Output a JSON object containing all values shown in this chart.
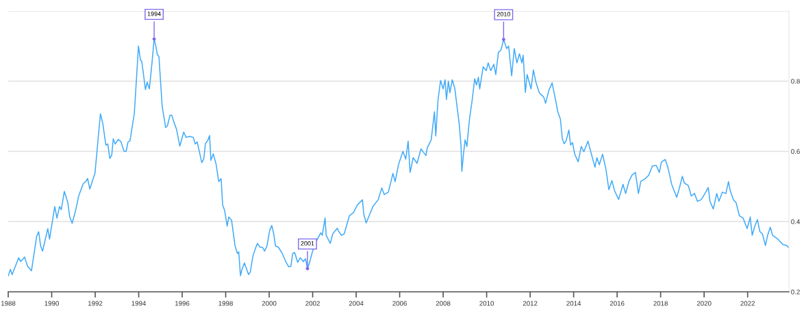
{
  "chart_data": {
    "type": "line",
    "x": [
      1988.0,
      1988.1,
      1988.18,
      1988.48,
      1988.57,
      1988.75,
      1988.89,
      1989.07,
      1989.31,
      1989.4,
      1989.49,
      1989.58,
      1989.82,
      1989.9,
      1990.14,
      1990.24,
      1990.36,
      1990.44,
      1990.58,
      1990.74,
      1990.83,
      1990.94,
      1991.1,
      1991.24,
      1991.45,
      1991.57,
      1991.65,
      1991.75,
      1991.99,
      1992.11,
      1992.24,
      1992.35,
      1992.49,
      1992.58,
      1992.67,
      1992.76,
      1992.83,
      1992.92,
      1993.06,
      1993.18,
      1993.33,
      1993.42,
      1993.51,
      1993.6,
      1993.8,
      1993.99,
      1994.08,
      1994.14,
      1994.31,
      1994.39,
      1994.49,
      1994.61,
      1994.71,
      1994.79,
      1994.85,
      1994.93,
      1995.08,
      1995.24,
      1995.32,
      1995.44,
      1995.52,
      1995.62,
      1995.74,
      1995.89,
      1996.07,
      1996.18,
      1996.33,
      1996.51,
      1996.6,
      1996.69,
      1996.9,
      1996.99,
      1997.07,
      1997.17,
      1997.26,
      1997.32,
      1997.43,
      1997.56,
      1997.68,
      1997.79,
      1997.86,
      1997.95,
      1998.07,
      1998.14,
      1998.27,
      1998.43,
      1998.54,
      1998.6,
      1998.68,
      1998.75,
      1998.86,
      1998.95,
      1999.05,
      1999.13,
      1999.25,
      1999.37,
      1999.46,
      1999.58,
      1999.69,
      1999.79,
      1999.9,
      2000.02,
      2000.12,
      2000.21,
      2000.29,
      2000.42,
      2000.58,
      2000.76,
      2000.9,
      2001.0,
      2001.08,
      2001.17,
      2001.31,
      2001.43,
      2001.57,
      2001.67,
      2001.76,
      2001.85,
      2001.98,
      2002.15,
      2002.37,
      2002.44,
      2002.57,
      2002.62,
      2002.81,
      2002.92,
      2003.13,
      2003.18,
      2003.32,
      2003.45,
      2003.69,
      2003.87,
      2004.05,
      2004.29,
      2004.35,
      2004.46,
      2004.6,
      2004.77,
      2005.01,
      2005.18,
      2005.29,
      2005.48,
      2005.69,
      2005.79,
      2005.95,
      2006.15,
      2006.28,
      2006.39,
      2006.48,
      2006.62,
      2006.8,
      2006.98,
      2007.21,
      2007.27,
      2007.45,
      2007.6,
      2007.66,
      2007.76,
      2007.88,
      2008.0,
      2008.09,
      2008.15,
      2008.24,
      2008.31,
      2008.42,
      2008.54,
      2008.59,
      2008.74,
      2008.82,
      2008.86,
      2008.94,
      2009.01,
      2009.09,
      2009.21,
      2009.33,
      2009.45,
      2009.53,
      2009.62,
      2009.68,
      2009.84,
      2009.98,
      2010.07,
      2010.19,
      2010.33,
      2010.42,
      2010.54,
      2010.66,
      2010.78,
      2010.92,
      2011.01,
      2011.15,
      2011.27,
      2011.39,
      2011.51,
      2011.62,
      2011.68,
      2011.78,
      2011.86,
      2012.04,
      2012.15,
      2012.27,
      2012.42,
      2012.62,
      2012.71,
      2012.86,
      2013.01,
      2013.15,
      2013.27,
      2013.39,
      2013.48,
      2013.56,
      2013.65,
      2013.78,
      2013.86,
      2013.95,
      2014.05,
      2014.21,
      2014.35,
      2014.47,
      2014.66,
      2014.8,
      2014.98,
      2015.07,
      2015.18,
      2015.33,
      2015.48,
      2015.62,
      2015.76,
      2015.88,
      2016.07,
      2016.27,
      2016.39,
      2016.54,
      2016.68,
      2016.84,
      2016.98,
      2017.09,
      2017.27,
      2017.45,
      2017.62,
      2017.8,
      2017.94,
      2018.04,
      2018.21,
      2018.33,
      2018.51,
      2018.62,
      2018.74,
      2018.86,
      2019.0,
      2019.09,
      2019.27,
      2019.41,
      2019.56,
      2019.69,
      2019.86,
      2020.04,
      2020.19,
      2020.27,
      2020.42,
      2020.58,
      2020.68,
      2020.84,
      2021.0,
      2021.12,
      2021.2,
      2021.35,
      2021.47,
      2021.62,
      2021.79,
      2021.98,
      2022.12,
      2022.21,
      2022.33,
      2022.45,
      2022.56,
      2022.68,
      2022.82,
      2022.92,
      2023.04,
      2023.15,
      2023.39,
      2023.62,
      2023.8,
      2023.88
    ],
    "series": [
      {
        "color": "#40aaf8",
        "values": [
          0.245,
          0.264,
          0.249,
          0.297,
          0.286,
          0.299,
          0.273,
          0.26,
          0.359,
          0.371,
          0.331,
          0.316,
          0.38,
          0.35,
          0.443,
          0.41,
          0.443,
          0.434,
          0.486,
          0.454,
          0.413,
          0.395,
          0.432,
          0.473,
          0.508,
          0.514,
          0.523,
          0.493,
          0.538,
          0.619,
          0.707,
          0.679,
          0.618,
          0.621,
          0.58,
          0.589,
          0.636,
          0.621,
          0.634,
          0.628,
          0.6,
          0.6,
          0.627,
          0.63,
          0.709,
          0.9,
          0.86,
          0.857,
          0.776,
          0.797,
          0.778,
          0.851,
          0.92,
          0.9,
          0.877,
          0.87,
          0.728,
          0.668,
          0.673,
          0.703,
          0.703,
          0.683,
          0.663,
          0.615,
          0.655,
          0.64,
          0.643,
          0.64,
          0.621,
          0.627,
          0.568,
          0.578,
          0.623,
          0.63,
          0.645,
          0.574,
          0.593,
          0.563,
          0.514,
          0.522,
          0.447,
          0.432,
          0.387,
          0.413,
          0.404,
          0.331,
          0.309,
          0.314,
          0.246,
          0.264,
          0.282,
          0.267,
          0.249,
          0.256,
          0.301,
          0.324,
          0.338,
          0.327,
          0.327,
          0.316,
          0.331,
          0.374,
          0.389,
          0.365,
          0.331,
          0.327,
          0.312,
          0.286,
          0.271,
          0.273,
          0.309,
          0.312,
          0.284,
          0.297,
          0.286,
          0.294,
          0.266,
          0.282,
          0.312,
          0.342,
          0.368,
          0.361,
          0.41,
          0.361,
          0.338,
          0.365,
          0.381,
          0.374,
          0.361,
          0.365,
          0.417,
          0.425,
          0.447,
          0.462,
          0.421,
          0.396,
          0.417,
          0.443,
          0.462,
          0.496,
          0.477,
          0.484,
          0.537,
          0.514,
          0.563,
          0.6,
          0.578,
          0.629,
          0.54,
          0.582,
          0.566,
          0.607,
          0.588,
          0.61,
          0.633,
          0.713,
          0.644,
          0.744,
          0.802,
          0.778,
          0.804,
          0.748,
          0.8,
          0.767,
          0.804,
          0.778,
          0.752,
          0.677,
          0.618,
          0.543,
          0.596,
          0.633,
          0.614,
          0.692,
          0.744,
          0.807,
          0.789,
          0.811,
          0.778,
          0.841,
          0.83,
          0.852,
          0.83,
          0.848,
          0.819,
          0.882,
          0.889,
          0.919,
          0.893,
          0.9,
          0.815,
          0.893,
          0.852,
          0.878,
          0.852,
          0.874,
          0.768,
          0.819,
          0.778,
          0.832,
          0.796,
          0.767,
          0.755,
          0.737,
          0.774,
          0.795,
          0.752,
          0.713,
          0.692,
          0.636,
          0.622,
          0.629,
          0.661,
          0.618,
          0.625,
          0.592,
          0.57,
          0.614,
          0.599,
          0.629,
          0.596,
          0.555,
          0.582,
          0.562,
          0.592,
          0.551,
          0.491,
          0.517,
          0.488,
          0.463,
          0.506,
          0.48,
          0.514,
          0.532,
          0.54,
          0.48,
          0.515,
          0.521,
          0.532,
          0.558,
          0.56,
          0.54,
          0.57,
          0.577,
          0.555,
          0.506,
          0.488,
          0.469,
          0.495,
          0.529,
          0.51,
          0.503,
          0.473,
          0.48,
          0.458,
          0.462,
          0.48,
          0.497,
          0.458,
          0.436,
          0.48,
          0.458,
          0.484,
          0.48,
          0.514,
          0.488,
          0.462,
          0.454,
          0.417,
          0.41,
          0.38,
          0.413,
          0.361,
          0.387,
          0.406,
          0.372,
          0.365,
          0.332,
          0.361,
          0.384,
          0.361,
          0.35,
          0.335,
          0.332,
          0.326
        ]
      }
    ],
    "xlim": [
      1988,
      2023.9
    ],
    "xticks": [
      1988,
      1990,
      1992,
      1994,
      1996,
      1998,
      2000,
      2002,
      2004,
      2006,
      2008,
      2010,
      2012,
      2014,
      2016,
      2018,
      2020,
      2022
    ],
    "ylim": [
      0.2,
      1.0
    ],
    "yticks": [
      0.2,
      0.4,
      0.6,
      0.8,
      {
        "value": 1.0,
        "label": null
      }
    ],
    "grid": "y",
    "marker": "none",
    "line_style": "solid",
    "annotations": [
      {
        "text": "1994",
        "x": 1994.71,
        "y": 0.92
      },
      {
        "text": "2001",
        "x": 2001.76,
        "y": 0.266
      },
      {
        "text": "2010",
        "x": 2010.78,
        "y": 0.919
      }
    ]
  }
}
